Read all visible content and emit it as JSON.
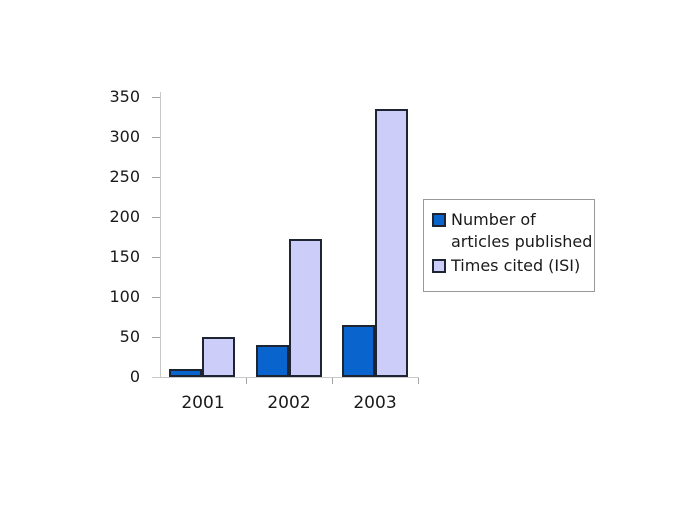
{
  "chart_data": {
    "type": "bar",
    "title": "",
    "categories": [
      "2001",
      "2002",
      "2003"
    ],
    "series": [
      {
        "name": "Number of articles published",
        "fill": "#0a64cd",
        "border": "#1f2433",
        "values": [
          10,
          40,
          65
        ]
      },
      {
        "name": "Times cited (ISI)",
        "fill": "#cdcdfa",
        "border": "#1f2433",
        "values": [
          50,
          172,
          335
        ]
      }
    ],
    "ylim": [
      0,
      350
    ],
    "yticks": [
      "350",
      "300",
      "250",
      "200",
      "150",
      "100",
      "50",
      "0"
    ],
    "xlabel": "",
    "ylabel": "",
    "grid": "off",
    "legend_position": "right",
    "plot_background": "#ffffff",
    "axis_line_color": "#c9c9c9"
  },
  "legend": {
    "items": [
      {
        "line1": "Number of",
        "line2": "articles published"
      },
      {
        "line1": "Times cited (ISI)",
        "line2": ""
      }
    ]
  }
}
